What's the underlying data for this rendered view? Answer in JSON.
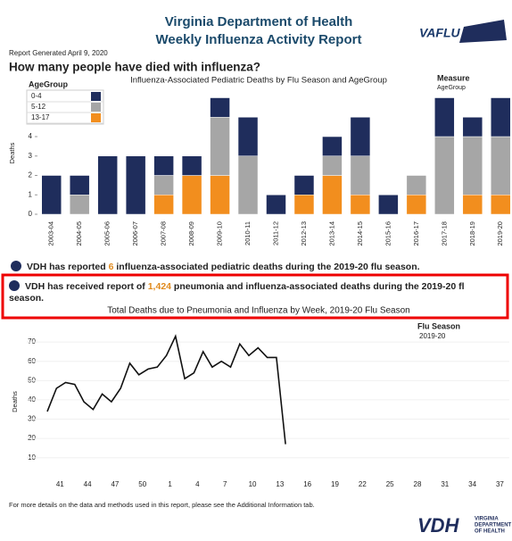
{
  "header": {
    "title_line1": "Virginia Department of Health",
    "title_line2": "Weekly Influenza Activity Report",
    "report_date": "Report Generated April 9, 2020",
    "logo": "VAFLU"
  },
  "question": "How many people have died with influenza?",
  "pediatric_note": {
    "prefix": "VDH has reported",
    "count": 6,
    "suffix": "influenza-associated pediatric deaths during the 2019-20 flu season."
  },
  "pi_note": {
    "prefix": "VDH has received report of",
    "count": "1,424",
    "suffix_line1": "pneumonia and influenza-associated  deaths during the 2019-20 fl",
    "suffix_line2": "season."
  },
  "footer": {
    "note": "For more details on the data and methods used in this report, please see the Additional Information tab.",
    "logo": "VDH",
    "logo_line1": "VIRGINIA",
    "logo_line2": "DEPARTMENT",
    "logo_line3": "OF HEALTH"
  },
  "chart_data": [
    {
      "type": "bar",
      "stacked": true,
      "title": "Influenza-Associated Pediatric Deaths by Flu Season and AgeGroup",
      "y_label": "Deaths",
      "legend_title": "AgeGroup",
      "annotations": [
        "Measure",
        "AgeGroup"
      ],
      "categories": [
        "2003-04",
        "2004-05",
        "2005-06",
        "2006-07",
        "2007-08",
        "2008-09",
        "2009-10",
        "2010-11",
        "2011-12",
        "2012-13",
        "2013-14",
        "2014-15",
        "2015-16",
        "2016-17",
        "2017-18",
        "2018-19",
        "2019-20"
      ],
      "series": [
        {
          "name": "13-17",
          "color": "#f28e1e",
          "values": [
            0,
            0,
            0,
            0,
            1,
            2,
            2,
            0,
            0,
            1,
            2,
            1,
            0,
            1,
            0,
            1,
            1
          ]
        },
        {
          "name": "5-12",
          "color": "#a6a6a6",
          "values": [
            0,
            1,
            0,
            0,
            1,
            0,
            3,
            3,
            0,
            0,
            1,
            2,
            0,
            1,
            4,
            3,
            3
          ]
        },
        {
          "name": "0-4",
          "color": "#1f2d5c",
          "values": [
            2,
            1,
            3,
            3,
            1,
            1,
            1,
            2,
            1,
            1,
            1,
            2,
            1,
            0,
            2,
            1,
            2
          ]
        }
      ],
      "ylim": [
        0,
        6.3
      ],
      "yticks": [
        0,
        1,
        2,
        3,
        4,
        5,
        6
      ]
    },
    {
      "type": "line",
      "title": "Total Deaths due to Pneumonia and Influenza by Week, 2019-20 Flu Season",
      "y_label": "Deaths",
      "legend_title": "Flu Season",
      "categories": [
        null,
        "41",
        null,
        null,
        "44",
        null,
        null,
        "47",
        null,
        null,
        "50",
        null,
        null,
        "1",
        null,
        null,
        "4",
        null,
        null,
        "7",
        null,
        null,
        "10",
        null,
        null,
        "13",
        null,
        null,
        "16",
        null,
        null,
        "19",
        null,
        null,
        "22",
        null,
        null,
        "25",
        null,
        null,
        "28",
        null,
        null,
        "31",
        null,
        null,
        "34",
        null,
        null,
        "37",
        null,
        null
      ],
      "series": [
        {
          "name": "2019-20",
          "color": "#111111",
          "values": [
            34,
            46,
            49,
            48,
            39,
            35,
            43,
            39,
            46,
            59,
            53,
            56,
            57,
            63,
            73,
            51,
            54,
            65,
            57,
            60,
            57,
            69,
            63,
            67,
            62,
            62,
            17,
            null,
            null,
            null,
            null,
            null,
            null,
            null,
            null,
            null,
            null,
            null,
            null,
            null,
            null,
            null,
            null,
            null,
            null,
            null,
            null,
            null,
            null,
            null,
            null,
            null
          ]
        }
      ],
      "ylim": [
        2,
        77
      ],
      "yticks": [
        10,
        20,
        30,
        40,
        50,
        60,
        70
      ],
      "grid": true
    }
  ]
}
